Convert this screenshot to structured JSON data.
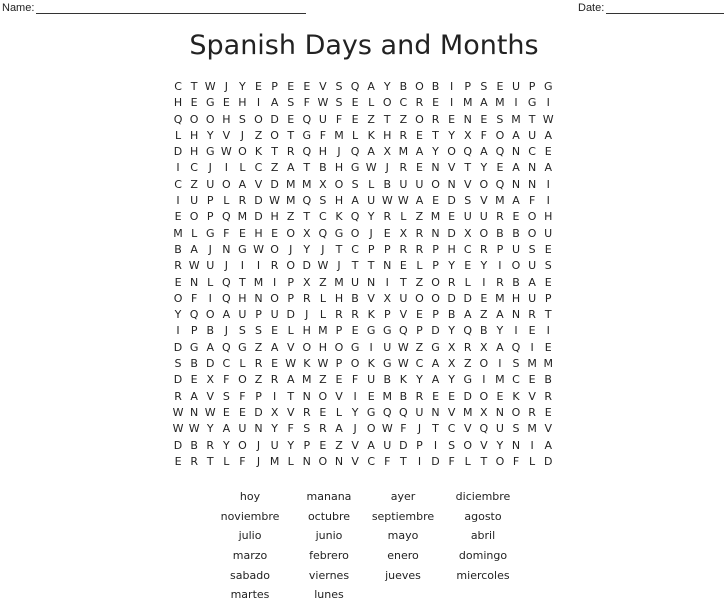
{
  "header": {
    "name_label": "Name:",
    "date_label": "Date:"
  },
  "title": "Spanish Days and Months",
  "grid": [
    "CTWJYEPEEVSQAYBOBIPSEUPG",
    "HEGEHIASFWSELOCREIMAMIGI",
    "QOOHSODEQUFEZTZORENESMTW",
    "LHYVJZOTGFMLKHRETYXFOAUA",
    "DHGWOKTRQHJQAXMAYOQAQNCE",
    "ICJILCZATBHGWJRENVTYEANA",
    "CZUOAVDMMXOSLBUUONVOQNNI",
    "IUPLRDWMQSHAUWWAEDSVMAFI",
    "EOPQMDHZTCKQYRLZMEUUREOH",
    "MLGFEHEOXQGOJEXRNDXOBBOU",
    "BAJNGWOJYJTCPPRRPHCRPUSE",
    "RWUJIIRODWJTTNELPYEYIOUS",
    "ENLQTMIPXZMUNITZORLIRBAE",
    "OFIQHNOPRLHBVXUOODDEMHUP",
    "YQOAUPUDJLRRKPVEPBAZANRT",
    "IPBJSSELHMPEGGQPDYQBYIEI",
    "DGAQGZAVOHOGIUWZGXRXAQIE",
    "SBDCLREWKWPOKGWCAXZOISMM",
    "DEXFOZRAMZEFUBKYAYGIMCEB",
    "RAVSFPITNOVIEMBREEDOEKVR",
    "WNWEEDXVRELYGQQUNVMXNORE",
    "WWYAUNYFSRAJOWFJTCVQUSMV",
    "DBRYOJUYPEZVAUDPISOVYNIA",
    "ERTLFJMLNONVCFTIDFLTOFLD"
  ],
  "words": [
    "hoy",
    "manana",
    "ayer",
    "diciembre",
    "noviembre",
    "octubre",
    "septiembre",
    "agosto",
    "julio",
    "junio",
    "mayo",
    "abril",
    "marzo",
    "febrero",
    "enero",
    "domingo",
    "sabado",
    "viernes",
    "jueves",
    "miercoles",
    "martes",
    "lunes"
  ]
}
